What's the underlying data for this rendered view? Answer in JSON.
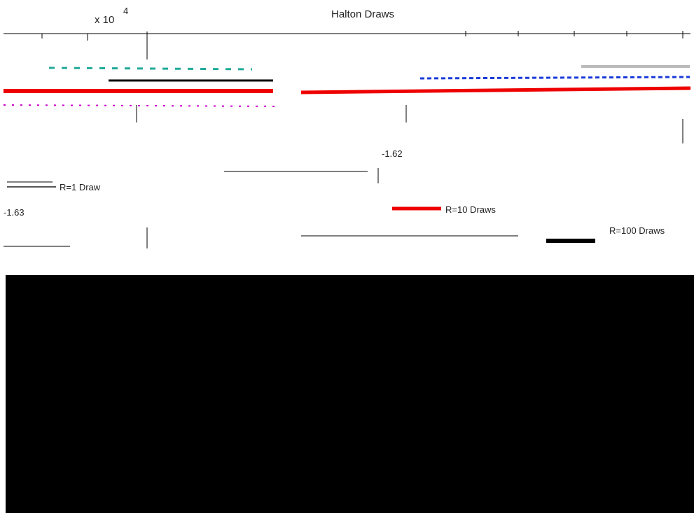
{
  "header": {
    "title": "Halton Draws",
    "multiplier": "x 10",
    "exponent": "4"
  },
  "ticks": {
    "upper": "-1.62",
    "lower": "-1.63"
  },
  "legend": {
    "items": [
      "R=1 Draw",
      "R=10 Draws",
      "R=100 Draws"
    ]
  }
}
